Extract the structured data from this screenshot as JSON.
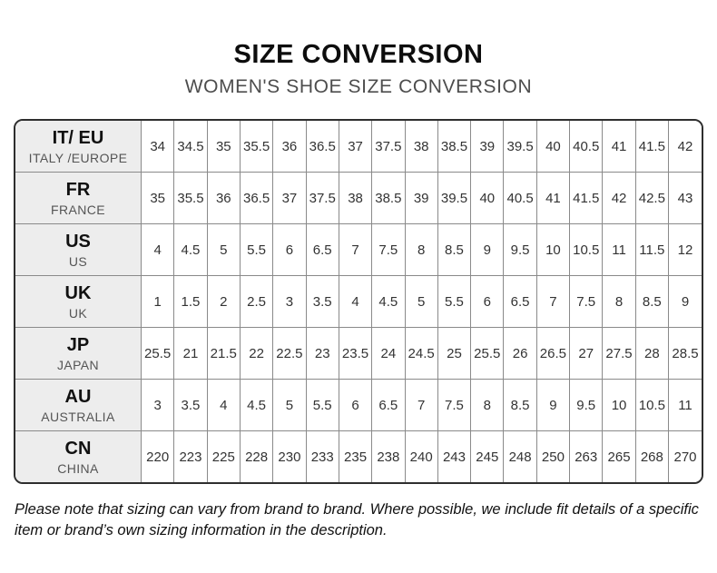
{
  "title": "SIZE CONVERSION",
  "subtitle": "WOMEN'S SHOE SIZE CONVERSION",
  "footer_note": "Please note that sizing can vary from brand to brand. Where possible, we include fit details of a specific item or brand’s own sizing information in the description.",
  "colors": {
    "outer_border": "#2E2E2E",
    "inner_grid": "#8A8A8A",
    "header_cell_bg": "#EDEDED",
    "title_text": "#0D0D0D",
    "subtitle_text": "#4D4D4D",
    "value_text": "#333333"
  },
  "chart_data": {
    "type": "table",
    "title": "SIZE CONVERSION",
    "subtitle": "WOMEN'S SHOE SIZE CONVERSION",
    "row_header_columns": [
      "code",
      "region"
    ],
    "rows": [
      {
        "code": "IT/ EU",
        "region": "ITALY /EUROPE",
        "values": [
          "34",
          "34.5",
          "35",
          "35.5",
          "36",
          "36.5",
          "37",
          "37.5",
          "38",
          "38.5",
          "39",
          "39.5",
          "40",
          "40.5",
          "41",
          "41.5",
          "42"
        ]
      },
      {
        "code": "FR",
        "region": "FRANCE",
        "values": [
          "35",
          "35.5",
          "36",
          "36.5",
          "37",
          "37.5",
          "38",
          "38.5",
          "39",
          "39.5",
          "40",
          "40.5",
          "41",
          "41.5",
          "42",
          "42.5",
          "43"
        ]
      },
      {
        "code": "US",
        "region": "US",
        "values": [
          "4",
          "4.5",
          "5",
          "5.5",
          "6",
          "6.5",
          "7",
          "7.5",
          "8",
          "8.5",
          "9",
          "9.5",
          "10",
          "10.5",
          "11",
          "11.5",
          "12"
        ]
      },
      {
        "code": "UK",
        "region": "UK",
        "values": [
          "1",
          "1.5",
          "2",
          "2.5",
          "3",
          "3.5",
          "4",
          "4.5",
          "5",
          "5.5",
          "6",
          "6.5",
          "7",
          "7.5",
          "8",
          "8.5",
          "9"
        ]
      },
      {
        "code": "JP",
        "region": "JAPAN",
        "values": [
          "25.5",
          "21",
          "21.5",
          "22",
          "22.5",
          "23",
          "23.5",
          "24",
          "24.5",
          "25",
          "25.5",
          "26",
          "26.5",
          "27",
          "27.5",
          "28",
          "28.5"
        ]
      },
      {
        "code": "AU",
        "region": "AUSTRALIA",
        "values": [
          "3",
          "3.5",
          "4",
          "4.5",
          "5",
          "5.5",
          "6",
          "6.5",
          "7",
          "7.5",
          "8",
          "8.5",
          "9",
          "9.5",
          "10",
          "10.5",
          "11"
        ]
      },
      {
        "code": "CN",
        "region": "CHINA",
        "values": [
          "220",
          "223",
          "225",
          "228",
          "230",
          "233",
          "235",
          "238",
          "240",
          "243",
          "245",
          "248",
          "250",
          "263",
          "265",
          "268",
          "270"
        ]
      }
    ]
  }
}
